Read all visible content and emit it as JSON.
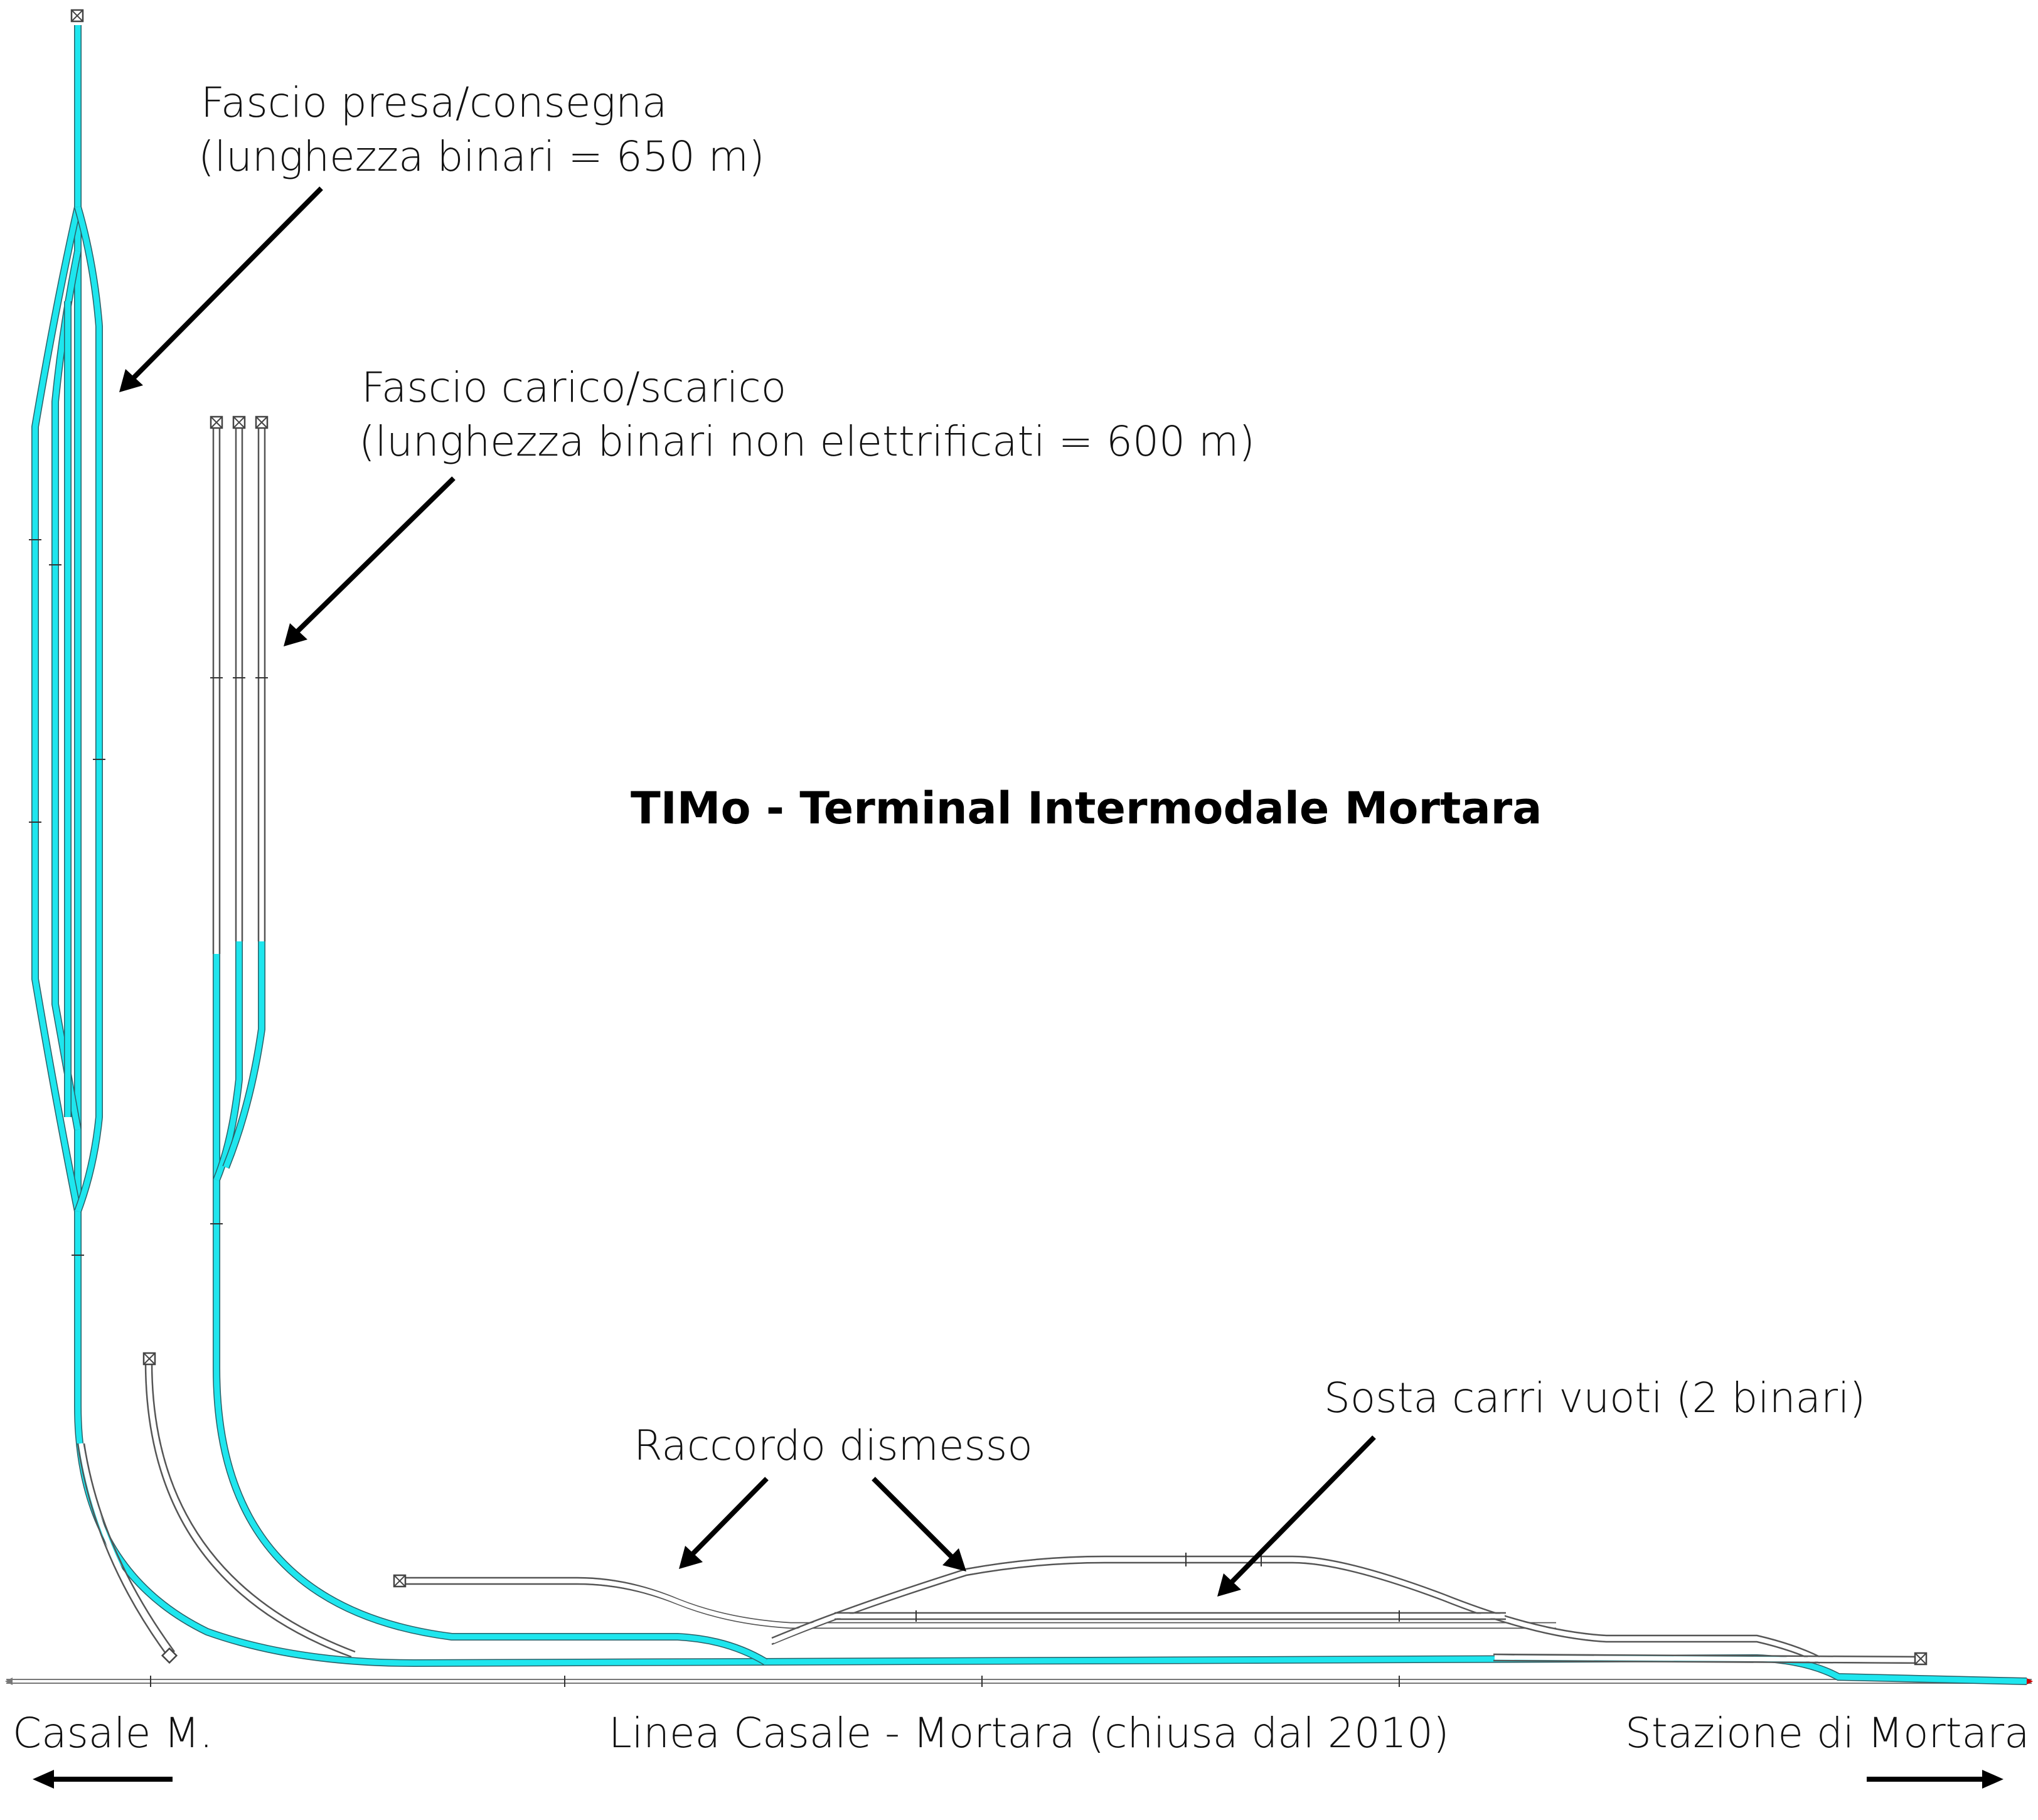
{
  "title": "TIMo - Terminal Intermodale Mortara",
  "labels": {
    "fascio_presa_line1": "Fascio presa/consegna",
    "fascio_presa_line2": "(lunghezza binari = 650 m)",
    "fascio_carico_line1": "Fascio carico/scarico",
    "fascio_carico_line2": "(lunghezza binari non elettrificati = 600 m)",
    "sosta_carri": "Sosta carri vuoti (2 binari)",
    "raccordo": "Raccordo dismesso",
    "casale": "Casale M.",
    "linea": "Linea Casale - Mortara (chiusa dal 2010)",
    "stazione": "Stazione di Mortara"
  },
  "colors": {
    "electrified_track": "#1ee6ee",
    "non_electrified_track": "#ffffff",
    "track_outline": "#555555",
    "text": "#111111",
    "end_marker": "#cc0000"
  },
  "legend_semantics": {
    "cyan_tracks": "electrified",
    "white_tracks": "non-electrified"
  }
}
